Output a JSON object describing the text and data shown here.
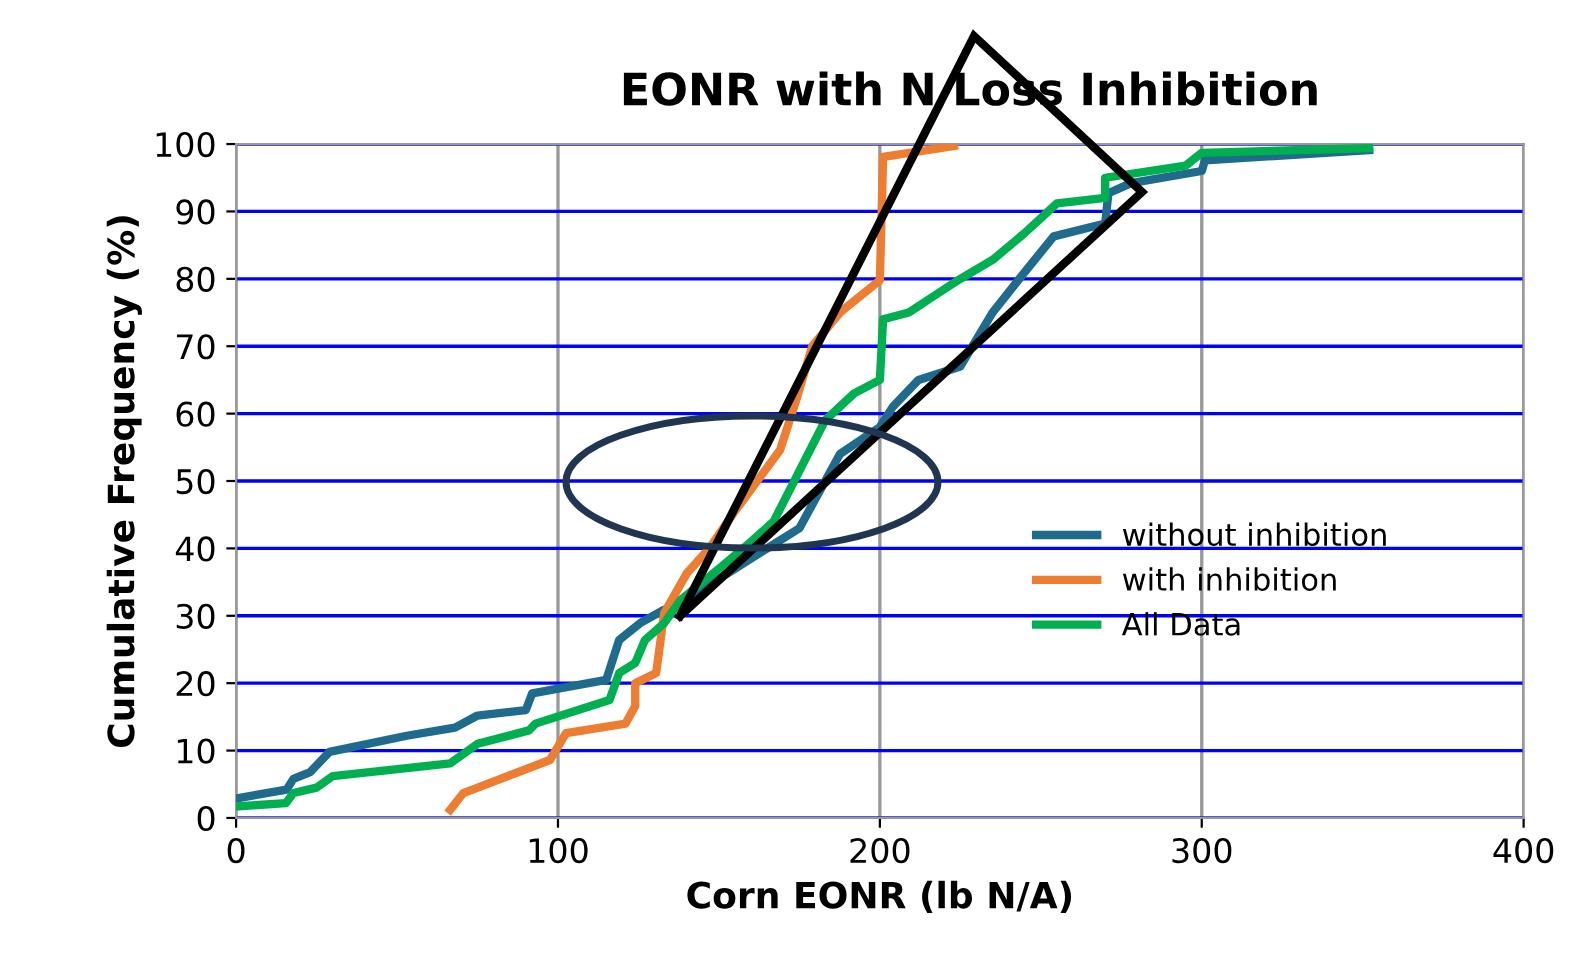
{
  "chart_data": {
    "type": "line",
    "title": "EONR with N Loss Inhibition",
    "xlabel": "Corn EONR (lb N/A)",
    "ylabel": "Cumulative Frequency (%)",
    "xlim": [
      0,
      400
    ],
    "xticks": [
      0,
      100,
      200,
      300,
      400
    ],
    "ylim": [
      0,
      100
    ],
    "yticks": [
      0,
      10,
      20,
      30,
      40,
      50,
      60,
      70,
      80,
      90,
      100
    ],
    "grid": true,
    "legend": "right",
    "marker": "none",
    "line_style": "solid",
    "series": [
      {
        "name": "without inhibition",
        "color": "#1f6b8e",
        "x": [
          0,
          15.7,
          17.8,
          23,
          29,
          53,
          68,
          75,
          90,
          92,
          115,
          119,
          125.5,
          133,
          138,
          155,
          165,
          175,
          187.6,
          200,
          204,
          212,
          225,
          235,
          245,
          254,
          270,
          271,
          278,
          300,
          301,
          352
        ],
        "values": [
          2.9,
          4.2,
          5.8,
          6.8,
          9.8,
          12.2,
          13.4,
          15.2,
          16,
          18.5,
          20.5,
          26.4,
          28.9,
          30.9,
          31.9,
          37,
          40,
          43,
          54,
          58,
          61,
          65,
          67,
          75,
          81,
          86.3,
          88.2,
          92.7,
          94.2,
          96,
          97.6,
          99.1
        ]
      },
      {
        "name": "with inhibition",
        "color": "#ed7d31",
        "x": [
          66.5,
          70.6,
          97.5,
          102.5,
          121,
          124,
          124,
          130.5,
          133,
          140,
          147,
          154.5,
          169,
          174,
          179,
          187.6,
          200,
          201,
          223
        ],
        "values": [
          1.2,
          3.7,
          8.6,
          12.6,
          14,
          16.6,
          20,
          21.5,
          30.4,
          36.3,
          40,
          45.2,
          54.6,
          62,
          70,
          75,
          79.8,
          98.1,
          99.7
        ]
      },
      {
        "name": "All Data",
        "color": "#00b050",
        "x": [
          0,
          15.5,
          17.8,
          25,
          30,
          53,
          66.5,
          75,
          91,
          93,
          116,
          119,
          124,
          127,
          133,
          138,
          150,
          160,
          167,
          183,
          192,
          200,
          201,
          209,
          216.6,
          225,
          235,
          245,
          255,
          270,
          270,
          295,
          300,
          352
        ],
        "values": [
          1.7,
          2.2,
          3.7,
          4.5,
          6.2,
          7.4,
          8.1,
          11,
          13,
          14,
          17.5,
          21.5,
          23,
          26.4,
          28.9,
          32.3,
          37,
          41,
          44,
          59,
          63,
          65,
          74,
          75,
          77.4,
          80,
          82.8,
          86.8,
          91.2,
          92,
          95,
          96.8,
          98.7,
          99.4
        ]
      }
    ]
  }
}
